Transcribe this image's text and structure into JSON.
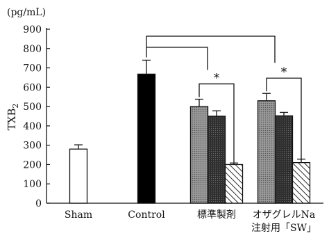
{
  "chart_data": {
    "type": "bar",
    "ylabel": "TXB",
    "ylabel_sub": "2",
    "y_unit": "(pg/mL)",
    "ylim": [
      0,
      900
    ],
    "y_ticks": [
      0,
      100,
      200,
      300,
      400,
      500,
      600,
      700,
      800,
      900
    ],
    "grid": false,
    "categories": [
      {
        "label": "Sham",
        "label_line2": ""
      },
      {
        "label": "Control",
        "label_line2": ""
      },
      {
        "label": "標準製剤",
        "label_line2": ""
      },
      {
        "label": "オザグレルNa",
        "label_line2": "注射用「SW」"
      }
    ],
    "bars": [
      {
        "group": 0,
        "value": 280,
        "error": 22,
        "fill": "white"
      },
      {
        "group": 1,
        "value": 668,
        "error": 72,
        "fill": "black"
      },
      {
        "group": 2,
        "value": 500,
        "error": 38,
        "fill": "dotted-gray"
      },
      {
        "group": 2,
        "value": 450,
        "error": 28,
        "fill": "dark-gray"
      },
      {
        "group": 2,
        "value": 200,
        "error": 8,
        "fill": "hatched"
      },
      {
        "group": 3,
        "value": 530,
        "error": 38,
        "fill": "dotted-gray"
      },
      {
        "group": 3,
        "value": 452,
        "error": 18,
        "fill": "dark-gray"
      },
      {
        "group": 3,
        "value": 210,
        "error": 18,
        "fill": "hatched"
      }
    ],
    "significance": [
      {
        "label": "*",
        "between": [
          "group 2 dotted-gray",
          "group 2 hatched"
        ]
      },
      {
        "label": "*",
        "between": [
          "group 3 dotted-gray",
          "group 3 hatched"
        ]
      }
    ],
    "colors": {
      "ink": "#111111",
      "dotted_gray": "#9a9a9a",
      "dark_gray": "#2e2e2e",
      "white": "#ffffff"
    }
  }
}
